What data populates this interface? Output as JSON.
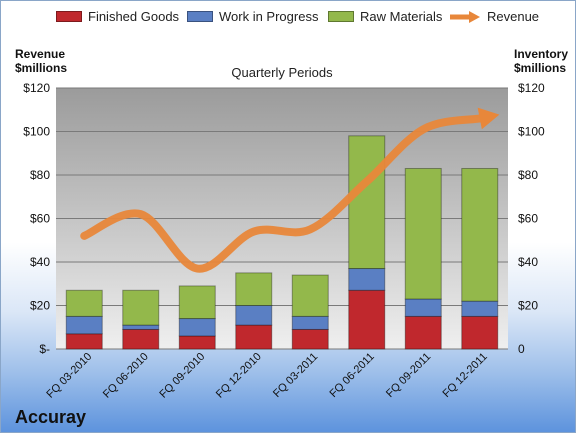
{
  "chart_data": {
    "type": "bar",
    "subtitle": "Quarterly Periods",
    "company": "Accuray",
    "ylabel_left": [
      "Revenue",
      "$millions"
    ],
    "ylabel_right": [
      "Inventory",
      "$millions"
    ],
    "ylim": [
      0,
      120
    ],
    "yticks_left": [
      "$-",
      "$20",
      "$40",
      "$60",
      "$80",
      "$100",
      "$120"
    ],
    "yticks_right": [
      "0",
      "$20",
      "$40",
      "$60",
      "$80",
      "$100",
      "$120"
    ],
    "categories": [
      "FQ 03-2010",
      "FQ 06-2010",
      "FQ 09-2010",
      "FQ 12-2010",
      "FQ 03-2011",
      "FQ 06-2011",
      "FQ 09-2011",
      "FQ 12-2011"
    ],
    "stacked": true,
    "grid": true,
    "legend_position": "top",
    "series": [
      {
        "name": "Finished Goods",
        "color": "#c0282d",
        "values": [
          7,
          9,
          6,
          11,
          9,
          27,
          15,
          15
        ]
      },
      {
        "name": "Work in Progress",
        "color": "#5a7fc3",
        "values": [
          8,
          2,
          8,
          9,
          6,
          10,
          8,
          7
        ]
      },
      {
        "name": "Raw Materials",
        "color": "#93b84b",
        "values": [
          12,
          16,
          15,
          15,
          19,
          61,
          60,
          61
        ]
      }
    ],
    "line_series": {
      "name": "Revenue",
      "color": "#e8873a",
      "values": [
        52,
        62,
        37,
        54,
        55,
        77,
        101,
        106
      ]
    }
  }
}
